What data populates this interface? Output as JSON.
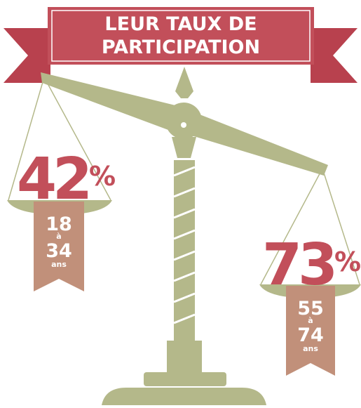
{
  "header": {
    "title_lines": [
      "LEUR TAUX DE",
      "PARTICIPATION"
    ]
  },
  "groups": [
    {
      "value": "42",
      "unit": "%",
      "age_from": "18",
      "connector": "à",
      "age_to": "34",
      "age_unit": "ans"
    },
    {
      "value": "73",
      "unit": "%",
      "age_from": "55",
      "connector": "à",
      "age_to": "74",
      "age_unit": "ans"
    }
  ]
}
